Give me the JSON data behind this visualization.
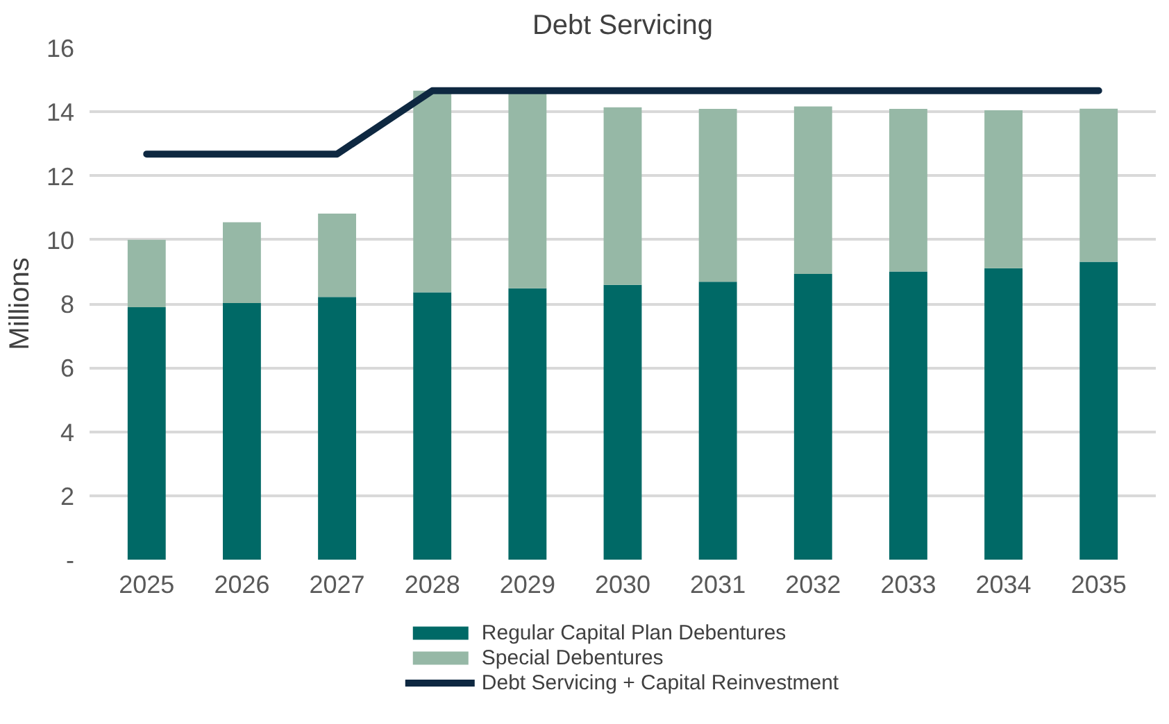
{
  "chart_data": {
    "type": "bar",
    "title": "Debt Servicing",
    "ylabel": "Millions",
    "stacked": true,
    "categories": [
      "2025",
      "2026",
      "2027",
      "2028",
      "2029",
      "2030",
      "2031",
      "2032",
      "2033",
      "2034",
      "2035"
    ],
    "series": [
      {
        "name": "Regular Capital Plan Debentures",
        "color": "#006966",
        "values": [
          7.89,
          8.02,
          8.21,
          8.36,
          8.48,
          8.59,
          8.69,
          8.93,
          9.01,
          9.11,
          9.31
        ]
      },
      {
        "name": "Special Debentures",
        "color": "#96b8a6",
        "values": [
          2.11,
          2.53,
          2.61,
          6.3,
          6.18,
          5.55,
          5.4,
          5.24,
          5.08,
          4.94,
          4.79
        ]
      },
      {
        "name": "Debt Servicing + Capital Reinvestment",
        "type": "line",
        "color": "#0e2841",
        "values": [
          12.68,
          12.68,
          12.68,
          14.66,
          14.66,
          14.66,
          14.66,
          14.66,
          14.66,
          14.66,
          14.66
        ]
      }
    ],
    "ylim": [
      0,
      16
    ],
    "yticks": [
      {
        "value": 0,
        "label": "-"
      },
      2,
      4,
      6,
      8,
      10,
      12,
      14,
      16
    ],
    "grid": "y",
    "legend": "bottom"
  }
}
